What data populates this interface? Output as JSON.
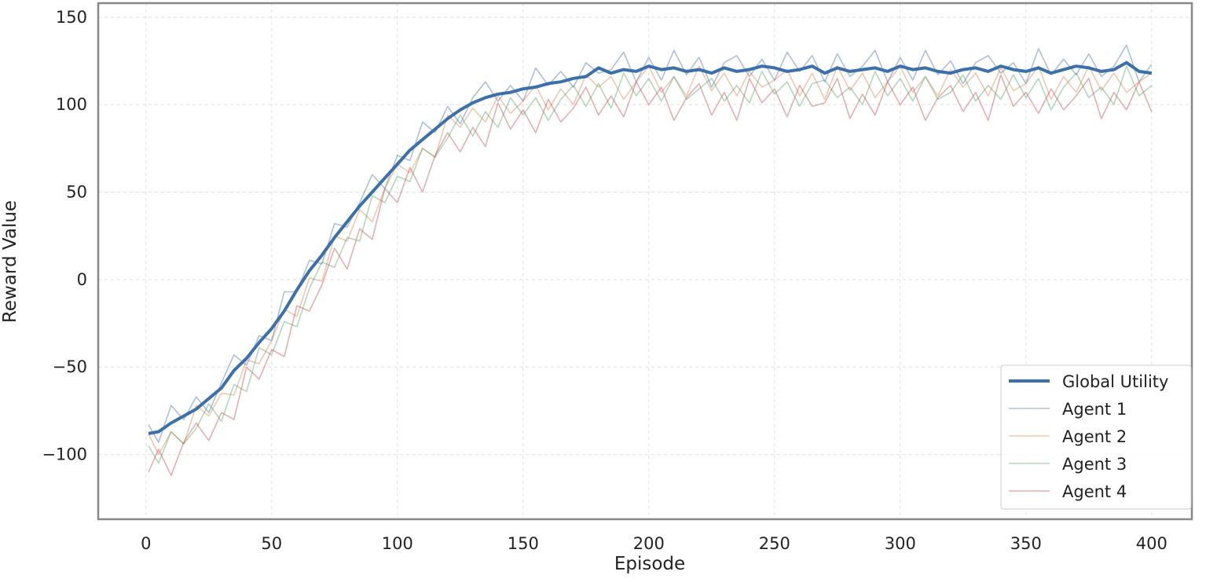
{
  "chart_data": {
    "type": "line",
    "x_label": "Episode",
    "y_label": "Reward Value",
    "x": [
      1,
      5,
      10,
      15,
      20,
      25,
      30,
      35,
      40,
      45,
      50,
      55,
      60,
      65,
      70,
      75,
      80,
      85,
      90,
      95,
      100,
      105,
      110,
      115,
      120,
      125,
      130,
      135,
      140,
      145,
      150,
      155,
      160,
      165,
      170,
      175,
      180,
      185,
      190,
      195,
      200,
      205,
      210,
      215,
      220,
      225,
      230,
      235,
      240,
      245,
      250,
      255,
      260,
      265,
      270,
      275,
      280,
      285,
      290,
      295,
      300,
      305,
      310,
      315,
      320,
      325,
      330,
      335,
      340,
      345,
      350,
      355,
      360,
      365,
      370,
      375,
      380,
      385,
      390,
      395,
      400
    ],
    "series": [
      {
        "name": "Global Utility",
        "color": "#3b70aa",
        "values": [
          -88,
          -87,
          -82,
          -78,
          -74,
          -68,
          -62,
          -52,
          -45,
          -36,
          -28,
          -18,
          -6,
          5,
          14,
          24,
          33,
          42,
          50,
          58,
          66,
          74,
          80,
          86,
          92,
          97,
          101,
          104,
          106,
          107,
          109,
          110,
          112,
          113,
          115,
          116,
          121,
          118,
          120,
          119,
          122,
          120,
          121,
          119,
          120,
          118,
          121,
          119,
          120,
          122,
          121,
          119,
          120,
          122,
          118,
          121,
          119,
          120,
          121,
          119,
          122,
          120,
          121,
          119,
          118,
          120,
          121,
          119,
          122,
          120,
          119,
          121,
          118,
          120,
          122,
          121,
          119,
          120,
          124,
          119,
          118
        ]
      },
      {
        "name": "Agent 1",
        "color": "#4c72b0",
        "values": [
          -83,
          -93,
          -72,
          -80,
          -67,
          -76,
          -59,
          -43,
          -49,
          -32,
          -35,
          -7,
          -7,
          11,
          9,
          32,
          30,
          44,
          60,
          52,
          71,
          68,
          90,
          84,
          99,
          89,
          104,
          113,
          102,
          111,
          102,
          121,
          111,
          119,
          110,
          124,
          118,
          120,
          130,
          113,
          127,
          114,
          131,
          117,
          127,
          110,
          124,
          128,
          116,
          126,
          114,
          130,
          119,
          128,
          113,
          129,
          116,
          122,
          131,
          113,
          127,
          114,
          131,
          117,
          125,
          112,
          124,
          128,
          118,
          124,
          112,
          132,
          117,
          126,
          117,
          129,
          116,
          122,
          134,
          113,
          123
        ]
      },
      {
        "name": "Agent 2",
        "color": "#dd8452",
        "values": [
          -88,
          -100,
          -87,
          -94,
          -72,
          -78,
          -65,
          -66,
          -46,
          -48,
          -35,
          -17,
          -21,
          1,
          -1,
          25,
          22,
          40,
          33,
          52,
          66,
          61,
          75,
          70,
          94,
          87,
          98,
          90,
          105,
          95,
          102,
          111,
          97,
          109,
          100,
          117,
          110,
          116,
          103,
          113,
          122,
          107,
          116,
          105,
          122,
          108,
          118,
          105,
          119,
          110,
          114,
          120,
          105,
          118,
          103,
          122,
          108,
          118,
          104,
          113,
          122,
          107,
          116,
          105,
          120,
          110,
          118,
          105,
          121,
          108,
          112,
          122,
          103,
          116,
          107,
          122,
          108,
          118,
          107,
          113,
          118
        ]
      },
      {
        "name": "Agent 3",
        "color": "#55a868",
        "values": [
          -95,
          -105,
          -87,
          -94,
          -85,
          -71,
          -81,
          -60,
          -64,
          -39,
          -43,
          -24,
          -27,
          -5,
          10,
          7,
          24,
          22,
          48,
          44,
          59,
          56,
          75,
          70,
          81,
          94,
          82,
          96,
          87,
          104,
          94,
          104,
          91,
          103,
          111,
          99,
          112,
          98,
          118,
          105,
          115,
          102,
          116,
          103,
          109,
          115,
          102,
          111,
          101,
          119,
          106,
          113,
          99,
          112,
          114,
          104,
          110,
          100,
          119,
          105,
          115,
          102,
          116,
          103,
          107,
          117,
          102,
          111,
          103,
          117,
          104,
          115,
          97,
          110,
          118,
          104,
          110,
          100,
          122,
          105,
          111
        ]
      },
      {
        "name": "Agent 4",
        "color": "#c44e52",
        "values": [
          -110,
          -97,
          -112,
          -93,
          -82,
          -92,
          -76,
          -80,
          -50,
          -57,
          -40,
          -44,
          -15,
          -18,
          -3,
          18,
          6,
          29,
          23,
          52,
          44,
          64,
          50,
          71,
          84,
          73,
          87,
          76,
          101,
          86,
          97,
          84,
          103,
          90,
          98,
          110,
          94,
          105,
          93,
          113,
          100,
          110,
          91,
          104,
          112,
          94,
          107,
          91,
          115,
          101,
          109,
          93,
          111,
          99,
          101,
          115,
          92,
          106,
          94,
          113,
          100,
          110,
          91,
          104,
          111,
          96,
          107,
          91,
          117,
          99,
          107,
          95,
          109,
          97,
          105,
          115,
          92,
          107,
          97,
          113,
          96
        ]
      }
    ],
    "xlim": [
      -19,
      416
    ],
    "ylim": [
      -137,
      158
    ],
    "xticks": [
      0,
      50,
      100,
      150,
      200,
      250,
      300,
      350,
      400
    ],
    "yticks": [
      {
        "value": -100,
        "label": "−100"
      },
      {
        "value": -50,
        "label": "−50"
      },
      0,
      50,
      100,
      150
    ],
    "grid": true,
    "legend": "lower right"
  }
}
